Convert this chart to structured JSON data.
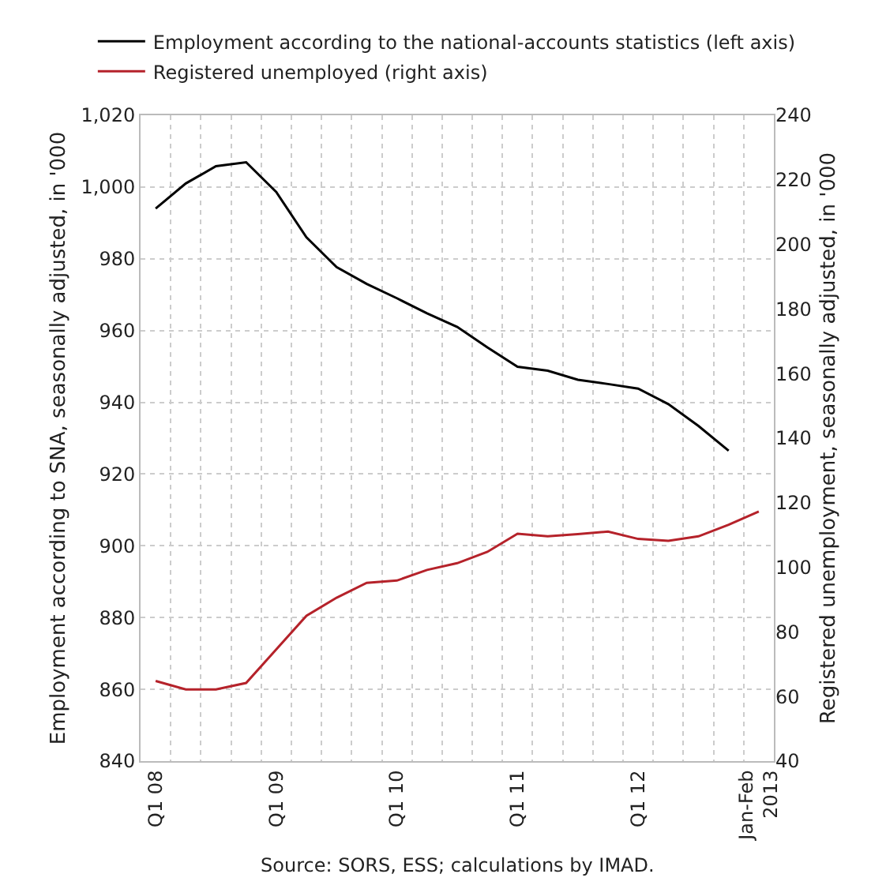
{
  "chart_data": {
    "type": "line",
    "categories": [
      "Q1 08",
      null,
      null,
      null,
      "Q1 09",
      null,
      null,
      null,
      "Q1 10",
      null,
      null,
      null,
      "Q1 11",
      null,
      null,
      null,
      "Q1 12",
      null,
      null,
      null,
      "Jan-Feb\n2013"
    ],
    "series": [
      {
        "name": "Employment according to the national-accounts statistics (left axis)",
        "color": "#000000",
        "values": [
          994,
          1001,
          1005.8,
          1006.9,
          998.6,
          986,
          977.7,
          973,
          969,
          964.8,
          961,
          955.3,
          949.9,
          948.8,
          946.3,
          945.1,
          943.8,
          939.5,
          933.4,
          926.5,
          null
        ]
      },
      {
        "name": "Registered unemployed (right axis)",
        "color": "#b5222a",
        "axis": "y2",
        "values": [
          64.8,
          62.2,
          62.2,
          64.2,
          74.6,
          85,
          90.6,
          95.2,
          95.9,
          99.2,
          101.3,
          104.8,
          110.4,
          109.6,
          110.3,
          111.1,
          108.8,
          108.2,
          109.6,
          113.2,
          117.3
        ]
      }
    ],
    "ylabel": "Employment according to SNA, seasonally adjusted, in '000",
    "y2label": "Registered unemployment, seasonally adjusted, in '000",
    "ylim": [
      840,
      1020
    ],
    "yticks": [
      840,
      860,
      880,
      900,
      920,
      940,
      960,
      980,
      {
        "value": 1000,
        "label": "1,000"
      },
      {
        "value": 1020,
        "label": "1,020"
      }
    ],
    "y2lim": [
      40,
      240
    ],
    "y2ticks": [
      40,
      60,
      80,
      100,
      120,
      140,
      160,
      180,
      200,
      220,
      240
    ],
    "annotations": [
      "Source: SORS, ESS; calculations by IMAD."
    ],
    "grid": true,
    "legend": "top left",
    "marker": "none",
    "line_style": "solid"
  }
}
